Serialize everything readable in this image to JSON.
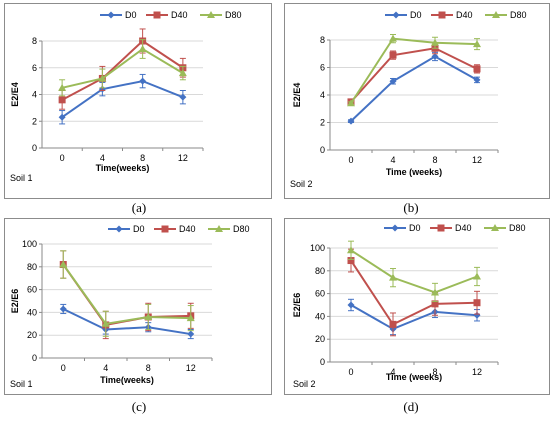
{
  "colors": {
    "D0": "#4472C4",
    "D40": "#C0504D",
    "D80": "#9BBB59"
  },
  "chart_data": [
    {
      "type": "line",
      "caption": "(a)",
      "soil_label": "Soil 1",
      "xlabel": "Time(weeks)",
      "ylabel": "E2/E4",
      "categories": [
        "0",
        "4",
        "8",
        "12"
      ],
      "ylim": [
        0,
        8
      ],
      "yticks": [
        0,
        2,
        4,
        6,
        8
      ],
      "grid": true,
      "legend": "top",
      "series": [
        {
          "name": "D0",
          "marker": "diamond",
          "values": [
            2.3,
            4.4,
            5.0,
            3.8
          ],
          "errors": [
            0.5,
            0.5,
            0.5,
            0.5
          ]
        },
        {
          "name": "D40",
          "marker": "square",
          "values": [
            3.6,
            5.2,
            8.0,
            6.0
          ],
          "errors": [
            0.7,
            0.9,
            0.9,
            0.7
          ]
        },
        {
          "name": "D80",
          "marker": "triangle",
          "values": [
            4.5,
            5.2,
            7.4,
            5.6
          ],
          "errors": [
            0.6,
            0.7,
            0.7,
            0.5
          ]
        }
      ]
    },
    {
      "type": "line",
      "caption": "(b)",
      "soil_label": "Soil 2",
      "xlabel": "Time (weeks)",
      "ylabel": "E2/E4",
      "categories": [
        "0",
        "4",
        "8",
        "12"
      ],
      "ylim": [
        0,
        8
      ],
      "yticks": [
        0,
        2,
        4,
        6,
        8
      ],
      "grid": true,
      "legend": "top",
      "series": [
        {
          "name": "D0",
          "marker": "diamond",
          "values": [
            2.1,
            5.0,
            6.8,
            5.1
          ],
          "errors": [
            0.1,
            0.2,
            0.3,
            0.2
          ]
        },
        {
          "name": "D40",
          "marker": "square",
          "values": [
            3.5,
            6.9,
            7.4,
            5.9
          ],
          "errors": [
            0.1,
            0.3,
            0.4,
            0.3
          ]
        },
        {
          "name": "D80",
          "marker": "triangle",
          "values": [
            3.4,
            8.1,
            7.8,
            7.7
          ],
          "errors": [
            0.1,
            0.3,
            0.4,
            0.4
          ]
        }
      ]
    },
    {
      "type": "line",
      "caption": "(c)",
      "soil_label": "Soil 1",
      "xlabel": "Time(weeks)",
      "ylabel": "E2/E6",
      "categories": [
        "0",
        "4",
        "8",
        "12"
      ],
      "ylim": [
        0,
        100
      ],
      "yticks": [
        0,
        20,
        40,
        60,
        80,
        100
      ],
      "grid": true,
      "legend": "top",
      "series": [
        {
          "name": "D0",
          "marker": "diamond",
          "values": [
            43,
            25,
            27,
            21
          ],
          "errors": [
            4,
            4,
            4,
            4
          ]
        },
        {
          "name": "D40",
          "marker": "square",
          "values": [
            82,
            29,
            36,
            37
          ],
          "errors": [
            12,
            12,
            12,
            11
          ]
        },
        {
          "name": "D80",
          "marker": "triangle",
          "values": [
            82,
            30,
            36,
            35
          ],
          "errors": [
            12,
            11,
            11,
            11
          ]
        }
      ]
    },
    {
      "type": "line",
      "caption": "(d)",
      "soil_label": "Soil 2",
      "xlabel": "Time (weeks)",
      "ylabel": "E2/E6",
      "categories": [
        "0",
        "4",
        "8",
        "12"
      ],
      "ylim": [
        0,
        100
      ],
      "yticks": [
        0,
        20,
        40,
        60,
        80,
        100
      ],
      "grid": true,
      "legend": "top",
      "series": [
        {
          "name": "D0",
          "marker": "diamond",
          "values": [
            50,
            29,
            44,
            41
          ],
          "errors": [
            5,
            5,
            5,
            5
          ]
        },
        {
          "name": "D40",
          "marker": "square",
          "values": [
            89,
            33,
            51,
            52
          ],
          "errors": [
            10,
            10,
            10,
            10
          ]
        },
        {
          "name": "D80",
          "marker": "triangle",
          "values": [
            98,
            74,
            61,
            75
          ],
          "errors": [
            8,
            8,
            8,
            8
          ]
        }
      ]
    }
  ]
}
